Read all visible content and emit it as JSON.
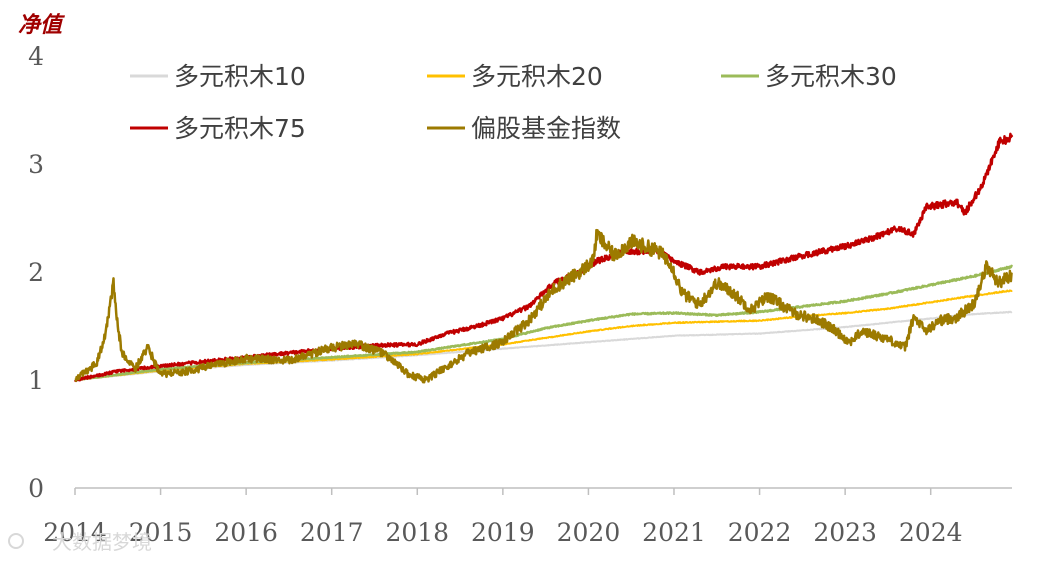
{
  "chart_data": {
    "type": "line",
    "ylabel": "净值",
    "ylim": [
      0,
      4
    ],
    "yticks": [
      "0",
      "1",
      "2",
      "3",
      "4"
    ],
    "xlim": [
      2014.0,
      2024.95
    ],
    "xticks": [
      "2014",
      "2015",
      "2016",
      "2017",
      "2018",
      "2019",
      "2020",
      "2021",
      "2022",
      "2023",
      "2024"
    ],
    "grid": false,
    "legend_position": "top",
    "series": [
      {
        "name": "多元积木10",
        "color": "#d9d9d9",
        "width": 2,
        "noise": 0.002,
        "points": [
          [
            2014.0,
            1.0
          ],
          [
            2015.0,
            1.08
          ],
          [
            2016.0,
            1.14
          ],
          [
            2017.0,
            1.18
          ],
          [
            2018.0,
            1.23
          ],
          [
            2019.0,
            1.29
          ],
          [
            2019.5,
            1.32
          ],
          [
            2020.0,
            1.35
          ],
          [
            2020.5,
            1.38
          ],
          [
            2021.0,
            1.41
          ],
          [
            2022.0,
            1.43
          ],
          [
            2022.5,
            1.46
          ],
          [
            2023.0,
            1.49
          ],
          [
            2024.0,
            1.57
          ],
          [
            2024.5,
            1.61
          ],
          [
            2024.95,
            1.63
          ]
        ]
      },
      {
        "name": "多元积木20",
        "color": "#ffc000",
        "width": 2,
        "noise": 0.003,
        "points": [
          [
            2014.0,
            1.0
          ],
          [
            2015.0,
            1.09
          ],
          [
            2016.0,
            1.15
          ],
          [
            2017.0,
            1.19
          ],
          [
            2018.0,
            1.24
          ],
          [
            2019.0,
            1.33
          ],
          [
            2019.5,
            1.39
          ],
          [
            2020.0,
            1.45
          ],
          [
            2020.5,
            1.5
          ],
          [
            2021.0,
            1.53
          ],
          [
            2022.0,
            1.55
          ],
          [
            2022.5,
            1.59
          ],
          [
            2023.0,
            1.62
          ],
          [
            2023.5,
            1.66
          ],
          [
            2024.0,
            1.72
          ],
          [
            2024.5,
            1.78
          ],
          [
            2024.95,
            1.83
          ]
        ]
      },
      {
        "name": "多元积木30",
        "color": "#9bbb59",
        "width": 2.5,
        "noise": 0.004,
        "points": [
          [
            2014.0,
            1.0
          ],
          [
            2015.0,
            1.1
          ],
          [
            2016.0,
            1.16
          ],
          [
            2017.0,
            1.21
          ],
          [
            2018.0,
            1.26
          ],
          [
            2019.0,
            1.38
          ],
          [
            2019.5,
            1.48
          ],
          [
            2020.0,
            1.55
          ],
          [
            2020.5,
            1.61
          ],
          [
            2021.0,
            1.62
          ],
          [
            2021.5,
            1.6
          ],
          [
            2022.0,
            1.63
          ],
          [
            2022.5,
            1.68
          ],
          [
            2023.0,
            1.73
          ],
          [
            2023.5,
            1.8
          ],
          [
            2024.0,
            1.88
          ],
          [
            2024.5,
            1.96
          ],
          [
            2024.95,
            2.05
          ]
        ]
      },
      {
        "name": "多元积木75",
        "color": "#c00000",
        "width": 2.5,
        "noise": 0.012,
        "points": [
          [
            2014.0,
            1.0
          ],
          [
            2014.5,
            1.08
          ],
          [
            2015.0,
            1.13
          ],
          [
            2015.5,
            1.17
          ],
          [
            2016.0,
            1.21
          ],
          [
            2016.5,
            1.25
          ],
          [
            2017.0,
            1.29
          ],
          [
            2017.5,
            1.32
          ],
          [
            2018.0,
            1.33
          ],
          [
            2018.3,
            1.42
          ],
          [
            2018.7,
            1.5
          ],
          [
            2019.0,
            1.57
          ],
          [
            2019.3,
            1.68
          ],
          [
            2019.6,
            1.9
          ],
          [
            2019.9,
            2.0
          ],
          [
            2020.1,
            2.1
          ],
          [
            2020.4,
            2.18
          ],
          [
            2020.8,
            2.2
          ],
          [
            2021.0,
            2.1
          ],
          [
            2021.3,
            2.0
          ],
          [
            2021.6,
            2.05
          ],
          [
            2022.0,
            2.05
          ],
          [
            2022.5,
            2.15
          ],
          [
            2022.9,
            2.22
          ],
          [
            2023.2,
            2.28
          ],
          [
            2023.6,
            2.4
          ],
          [
            2023.8,
            2.35
          ],
          [
            2023.95,
            2.6
          ],
          [
            2024.3,
            2.65
          ],
          [
            2024.4,
            2.55
          ],
          [
            2024.6,
            2.8
          ],
          [
            2024.8,
            3.2
          ],
          [
            2024.95,
            3.25
          ]
        ]
      },
      {
        "name": "偏股基金指数",
        "color": "#9c7a00",
        "width": 2.5,
        "noise": 0.03,
        "points": [
          [
            2014.0,
            1.0
          ],
          [
            2014.25,
            1.15
          ],
          [
            2014.35,
            1.4
          ],
          [
            2014.45,
            1.9
          ],
          [
            2014.5,
            1.5
          ],
          [
            2014.55,
            1.25
          ],
          [
            2014.7,
            1.1
          ],
          [
            2014.85,
            1.3
          ],
          [
            2015.0,
            1.05
          ],
          [
            2015.3,
            1.08
          ],
          [
            2015.7,
            1.15
          ],
          [
            2016.0,
            1.2
          ],
          [
            2016.5,
            1.18
          ],
          [
            2017.0,
            1.3
          ],
          [
            2017.3,
            1.33
          ],
          [
            2017.6,
            1.25
          ],
          [
            2017.9,
            1.05
          ],
          [
            2018.1,
            1.0
          ],
          [
            2018.3,
            1.1
          ],
          [
            2018.6,
            1.25
          ],
          [
            2019.0,
            1.35
          ],
          [
            2019.3,
            1.55
          ],
          [
            2019.6,
            1.85
          ],
          [
            2019.9,
            2.0
          ],
          [
            2020.05,
            2.1
          ],
          [
            2020.1,
            2.35
          ],
          [
            2020.3,
            2.15
          ],
          [
            2020.5,
            2.28
          ],
          [
            2020.8,
            2.2
          ],
          [
            2020.95,
            2.1
          ],
          [
            2021.1,
            1.8
          ],
          [
            2021.3,
            1.7
          ],
          [
            2021.5,
            1.9
          ],
          [
            2021.7,
            1.8
          ],
          [
            2021.9,
            1.65
          ],
          [
            2022.1,
            1.78
          ],
          [
            2022.4,
            1.62
          ],
          [
            2022.7,
            1.55
          ],
          [
            2022.9,
            1.45
          ],
          [
            2023.05,
            1.35
          ],
          [
            2023.2,
            1.45
          ],
          [
            2023.5,
            1.38
          ],
          [
            2023.7,
            1.3
          ],
          [
            2023.8,
            1.58
          ],
          [
            2023.95,
            1.45
          ],
          [
            2024.1,
            1.55
          ],
          [
            2024.3,
            1.58
          ],
          [
            2024.5,
            1.7
          ],
          [
            2024.65,
            2.05
          ],
          [
            2024.8,
            1.9
          ],
          [
            2024.95,
            1.98
          ]
        ]
      }
    ]
  },
  "watermark": "大数据梦境"
}
